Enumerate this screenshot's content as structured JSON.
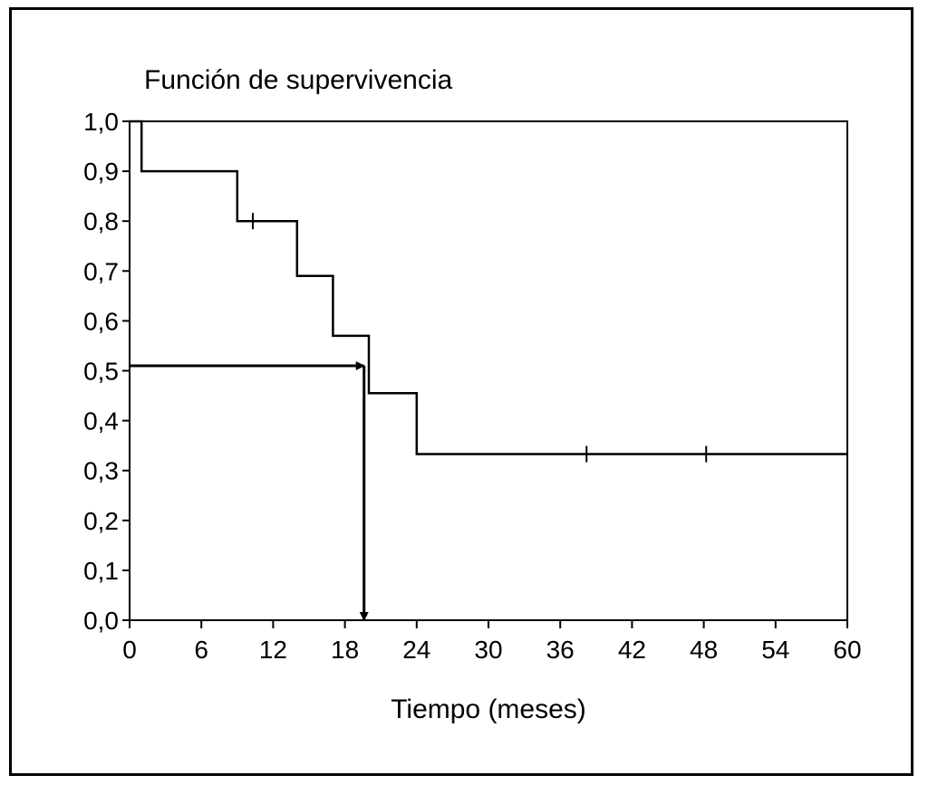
{
  "chart_data": {
    "type": "line",
    "subtype": "kaplan-meier-step",
    "title": "Función de supervivencia",
    "xlabel": "Tiempo (meses)",
    "ylabel": "",
    "xlim": [
      0,
      60
    ],
    "ylim": [
      0.0,
      1.0
    ],
    "x_ticks": [
      0,
      6,
      12,
      18,
      24,
      30,
      36,
      42,
      48,
      54,
      60
    ],
    "x_tick_labels": [
      "0",
      "6",
      "12",
      "18",
      "24",
      "30",
      "36",
      "42",
      "48",
      "54",
      "60"
    ],
    "y_ticks": [
      0.0,
      0.1,
      0.2,
      0.3,
      0.4,
      0.5,
      0.6,
      0.7,
      0.8,
      0.9,
      1.0
    ],
    "y_tick_labels": [
      "0,0",
      "0,1",
      "0,2",
      "0,3",
      "0,4",
      "0,5",
      "0,6",
      "0,7",
      "0,8",
      "0,9",
      "1,0"
    ],
    "grid": false,
    "series": [
      {
        "steps": [
          {
            "x": 0,
            "y": 1.0
          },
          {
            "x": 1,
            "y": 0.9
          },
          {
            "x": 9,
            "y": 0.8
          },
          {
            "x": 14,
            "y": 0.69
          },
          {
            "x": 17,
            "y": 0.57
          },
          {
            "x": 20,
            "y": 0.455
          },
          {
            "x": 24,
            "y": 0.333
          },
          {
            "x": 60,
            "y": 0.333
          }
        ],
        "censored": [
          {
            "x": 10.3,
            "y": 0.8
          },
          {
            "x": 38.2,
            "y": 0.333
          },
          {
            "x": 48.2,
            "y": 0.333
          }
        ],
        "color": "#000000"
      }
    ],
    "annotations": [
      {
        "type": "arrow",
        "from": {
          "x": 0,
          "y": 0.51
        },
        "to": {
          "x": 19.6,
          "y": 0.51
        }
      },
      {
        "type": "arrow",
        "from": {
          "x": 19.6,
          "y": 0.51
        },
        "to": {
          "x": 19.6,
          "y": 0.0
        }
      }
    ]
  }
}
